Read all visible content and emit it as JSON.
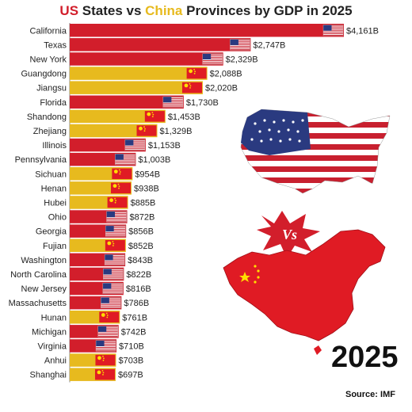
{
  "title": {
    "us_part": "US",
    "mid1": " States vs ",
    "cn_part": "China",
    "mid2": " Provinces by GDP in 2025"
  },
  "year_badge": "2025",
  "source": "Source: IMF",
  "vs_badge": "Vs",
  "colors": {
    "us": "#d21e2b",
    "china": "#e7ba1e"
  },
  "chart_data": {
    "type": "bar",
    "orientation": "horizontal",
    "categories": [
      "California",
      "Texas",
      "New York",
      "Guangdong",
      "Jiangsu",
      "Florida",
      "Shandong",
      "Zhejiang",
      "Illinois",
      "Pennsylvania",
      "Sichuan",
      "Henan",
      "Hubei",
      "Ohio",
      "Georgia",
      "Fujian",
      "Washington",
      "North Carolina",
      "New Jersey",
      "Massachusetts",
      "Hunan",
      "Michigan",
      "Virginia",
      "Anhui",
      "Shanghai"
    ],
    "values": [
      4161,
      2747,
      2329,
      2088,
      2020,
      1730,
      1453,
      1329,
      1153,
      1003,
      954,
      938,
      885,
      872,
      856,
      852,
      843,
      822,
      816,
      786,
      761,
      742,
      710,
      703,
      697
    ],
    "value_labels": [
      "$4,161B",
      "$2,747B",
      "$2,329B",
      "$2,088B",
      "$2,020B",
      "$1,730B",
      "$1,453B",
      "$1,329B",
      "$1,153B",
      "$1,003B",
      "$954B",
      "$938B",
      "$885B",
      "$872B",
      "$856B",
      "$852B",
      "$843B",
      "$822B",
      "$816B",
      "$786B",
      "$761B",
      "$742B",
      "$710B",
      "$703B",
      "$697B"
    ],
    "country": [
      "US",
      "US",
      "US",
      "China",
      "China",
      "US",
      "China",
      "China",
      "US",
      "US",
      "China",
      "China",
      "China",
      "US",
      "US",
      "China",
      "US",
      "US",
      "US",
      "US",
      "China",
      "US",
      "US",
      "China",
      "China"
    ],
    "unit": "B",
    "xlim": [
      0,
      4161
    ]
  }
}
